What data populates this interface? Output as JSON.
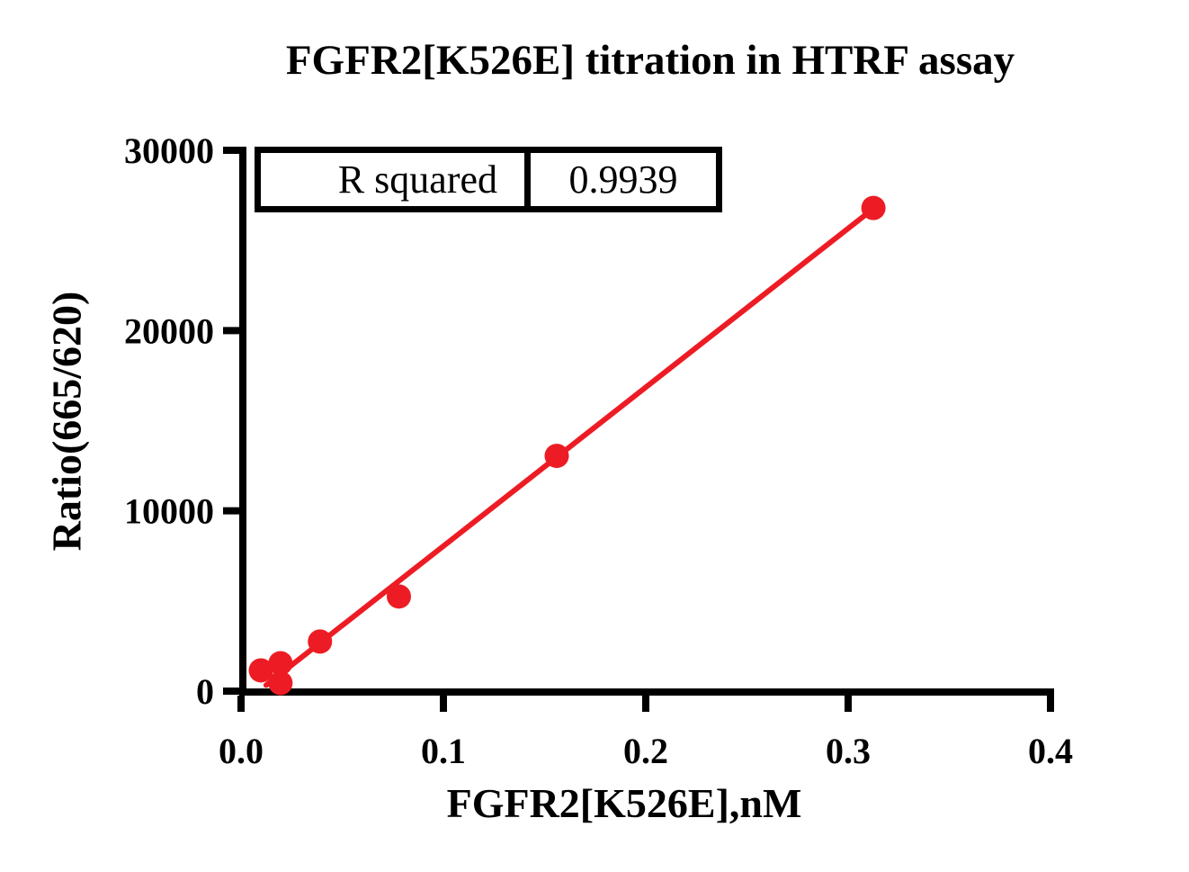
{
  "chart_data": {
    "type": "scatter",
    "title": "FGFR2[K526E] titration in HTRF assay",
    "xlabel": "FGFR2[K526E],nM",
    "ylabel": "Ratio(665/620)",
    "xlim": [
      0,
      0.4
    ],
    "ylim": [
      0,
      30000
    ],
    "x_ticks": [
      0,
      0.1,
      0.2,
      0.3,
      0.4
    ],
    "x_tick_labels": [
      "0.0",
      "0.1",
      "0.2",
      "0.3",
      "0.4"
    ],
    "y_ticks": [
      0,
      10000,
      20000,
      30000
    ],
    "y_tick_labels": [
      "0",
      "10000",
      "20000",
      "30000"
    ],
    "grid": false,
    "legend": null,
    "series": [
      {
        "marker": "circle",
        "color": "#ED1C24",
        "points": [
          {
            "x": 0.0098,
            "y": 1150
          },
          {
            "x": 0.0195,
            "y": 1550
          },
          {
            "x": 0.0195,
            "y": 450
          },
          {
            "x": 0.039,
            "y": 2750
          },
          {
            "x": 0.078,
            "y": 5250
          },
          {
            "x": 0.156,
            "y": 13050
          },
          {
            "x": 0.3125,
            "y": 26800
          }
        ]
      }
    ],
    "fit_line": {
      "x1": 0.0124,
      "y1": 330,
      "x2": 0.3129,
      "y2": 26800,
      "color": "#ED1C24"
    },
    "r_squared": 0.9939,
    "stats_table": {
      "label": "R squared",
      "value": "0.9939"
    },
    "colors": {
      "points": "#ED1C24",
      "line": "#ED1C24",
      "axis": "#000000",
      "background": "#ffffff"
    }
  }
}
